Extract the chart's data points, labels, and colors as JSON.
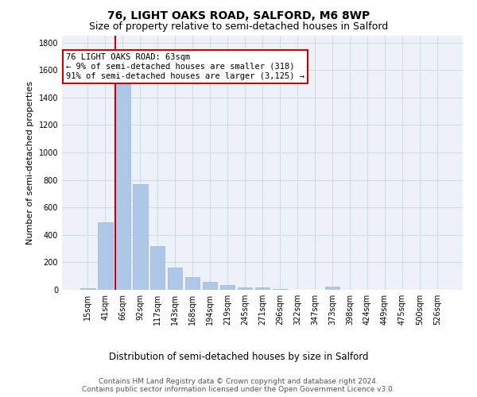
{
  "title": "76, LIGHT OAKS ROAD, SALFORD, M6 8WP",
  "subtitle": "Size of property relative to semi-detached houses in Salford",
  "xlabel": "Distribution of semi-detached houses by size in Salford",
  "ylabel": "Number of semi-detached properties",
  "categories": [
    "15sqm",
    "41sqm",
    "66sqm",
    "92sqm",
    "117sqm",
    "143sqm",
    "168sqm",
    "194sqm",
    "219sqm",
    "245sqm",
    "271sqm",
    "296sqm",
    "322sqm",
    "347sqm",
    "373sqm",
    "398sqm",
    "424sqm",
    "449sqm",
    "475sqm",
    "500sqm",
    "526sqm"
  ],
  "values": [
    10,
    490,
    1500,
    770,
    320,
    160,
    95,
    55,
    35,
    20,
    15,
    5,
    0,
    0,
    25,
    0,
    0,
    0,
    0,
    0,
    0
  ],
  "bar_color": "#aec6e8",
  "bar_edge_color": "#9ab8d8",
  "highlight_line_color": "#cc0000",
  "annotation_line1": "76 LIGHT OAKS ROAD: 63sqm",
  "annotation_line2": "← 9% of semi-detached houses are smaller (318)",
  "annotation_line3": "91% of semi-detached houses are larger (3,125) →",
  "annotation_box_color": "#ffffff",
  "annotation_box_edge_color": "#cc0000",
  "ylim": [
    0,
    1850
  ],
  "yticks": [
    0,
    200,
    400,
    600,
    800,
    1000,
    1200,
    1400,
    1600,
    1800
  ],
  "footer_text": "Contains HM Land Registry data © Crown copyright and database right 2024.\nContains public sector information licensed under the Open Government Licence v3.0.",
  "grid_color": "#d0dce8",
  "bg_color": "#eef2f8",
  "title_fontsize": 10,
  "subtitle_fontsize": 9,
  "xlabel_fontsize": 8.5,
  "ylabel_fontsize": 8,
  "tick_fontsize": 7,
  "footer_fontsize": 6.5,
  "annotation_fontsize": 7.5
}
